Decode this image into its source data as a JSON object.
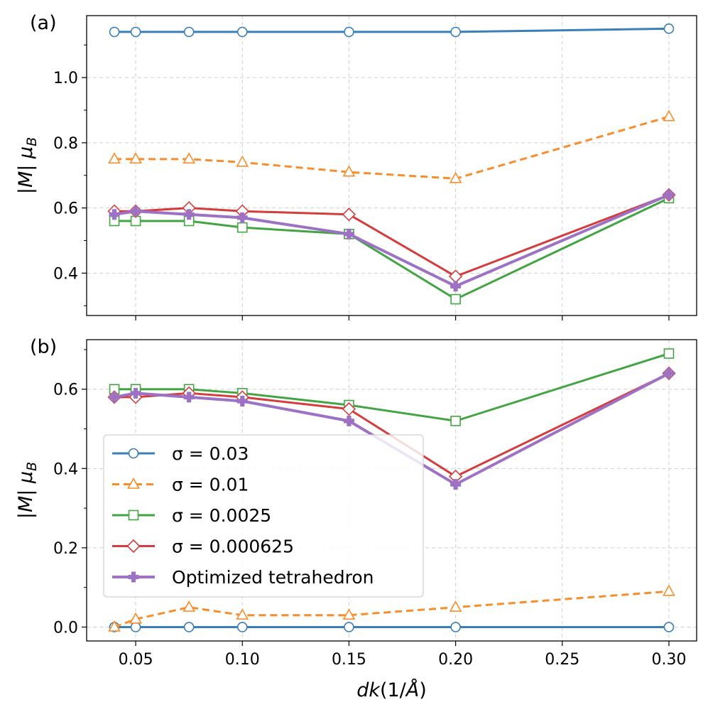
{
  "chart_data": [
    {
      "panel_label": "(a)",
      "type": "line",
      "xlabel": "dk(1/Å)",
      "ylabel": "|M| μB",
      "xlim": [
        0.027,
        0.313
      ],
      "ylim": [
        0.27,
        1.19
      ],
      "yticks": [
        0.4,
        0.6,
        0.8,
        1.0
      ],
      "ytick_labels": [
        "0.4",
        "0.6",
        "0.8",
        "1.0"
      ],
      "grid": true,
      "x": [
        0.04,
        0.05,
        0.075,
        0.1,
        0.15,
        0.2,
        0.3
      ],
      "series": [
        {
          "key": "s003",
          "values": [
            1.14,
            1.14,
            1.14,
            1.14,
            1.14,
            1.14,
            1.15
          ]
        },
        {
          "key": "s001",
          "values": [
            0.75,
            0.75,
            0.75,
            0.74,
            0.71,
            0.69,
            0.88
          ]
        },
        {
          "key": "s0025",
          "values": [
            0.56,
            0.56,
            0.56,
            0.54,
            0.52,
            0.32,
            0.63
          ]
        },
        {
          "key": "s000625",
          "values": [
            0.59,
            0.59,
            0.6,
            0.59,
            0.58,
            0.39,
            0.64
          ]
        },
        {
          "key": "tetra",
          "values": [
            0.58,
            0.59,
            0.58,
            0.57,
            0.52,
            0.36,
            0.64
          ]
        }
      ]
    },
    {
      "panel_label": "(b)",
      "type": "line",
      "xlabel": "dk(1/Å)",
      "ylabel": "|M| μB",
      "xlim": [
        0.027,
        0.313
      ],
      "ylim": [
        -0.035,
        0.725
      ],
      "yticks": [
        0.0,
        0.2,
        0.4,
        0.6
      ],
      "ytick_labels": [
        "0.0",
        "0.2",
        "0.4",
        "0.6"
      ],
      "xticks": [
        0.05,
        0.1,
        0.15,
        0.2,
        0.25,
        0.3
      ],
      "xtick_labels": [
        "0.05",
        "0.10",
        "0.15",
        "0.20",
        "0.25",
        "0.30"
      ],
      "grid": true,
      "legend_position": "lower-left",
      "x": [
        0.04,
        0.05,
        0.075,
        0.1,
        0.15,
        0.2,
        0.3
      ],
      "series": [
        {
          "key": "s003",
          "values": [
            0.0,
            0.0,
            0.0,
            0.0,
            0.0,
            0.0,
            0.0
          ]
        },
        {
          "key": "s001",
          "values": [
            0.0,
            0.02,
            0.05,
            0.03,
            0.03,
            0.05,
            0.09
          ]
        },
        {
          "key": "s0025",
          "values": [
            0.6,
            0.6,
            0.6,
            0.59,
            0.56,
            0.52,
            0.69
          ]
        },
        {
          "key": "s000625",
          "values": [
            0.58,
            0.58,
            0.59,
            0.58,
            0.55,
            0.38,
            0.64
          ]
        },
        {
          "key": "tetra",
          "values": [
            0.58,
            0.59,
            0.58,
            0.57,
            0.52,
            0.36,
            0.64
          ]
        }
      ]
    }
  ],
  "legend": [
    {
      "key": "s003",
      "name": "σ = 0.03",
      "color": "#3a7fb8",
      "marker": "circle",
      "dash": "solid"
    },
    {
      "key": "s001",
      "name": "σ = 0.01",
      "color": "#f88d2b",
      "marker": "triangle",
      "dash": "dashed"
    },
    {
      "key": "s0025",
      "name": "σ = 0.0025",
      "color": "#43a443",
      "marker": "square",
      "dash": "solid"
    },
    {
      "key": "s000625",
      "name": "σ = 0.000625",
      "color": "#d33d3d",
      "marker": "diamond",
      "dash": "solid"
    },
    {
      "key": "tetra",
      "name": "Optimized tetrahedron",
      "color": "#9d72c4",
      "marker": "plus",
      "dash": "solid"
    }
  ]
}
